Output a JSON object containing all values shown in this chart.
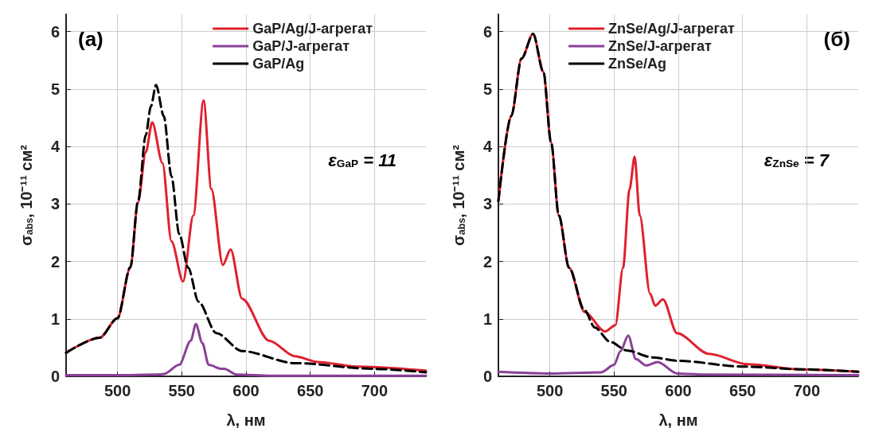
{
  "chart_data": [
    {
      "type": "line",
      "xlabel": "λ, нм",
      "ylabel": "σ$_{abs}$, 10⁻¹¹ см²",
      "xlim": [
        460,
        740
      ],
      "ylim": [
        0,
        6.3
      ],
      "xticks": [
        500,
        550,
        600,
        650,
        700
      ],
      "yticks": [
        0,
        1,
        2,
        3,
        4,
        5,
        6
      ],
      "grid": true,
      "legend": "top right",
      "marker": "none",
      "annotations": [
        "(a)",
        "ε$_{GaP}$ = 11"
      ],
      "series": [
        {
          "name": "GaP/Ag/J-агрегат",
          "color": "#e0202e",
          "line_style": "solid",
          "x": [
            460,
            486,
            500,
            510,
            516,
            522,
            527,
            535,
            542,
            551,
            559,
            567,
            573,
            582,
            588,
            597,
            618,
            638,
            656,
            686,
            740
          ],
          "values": [
            0.41,
            0.67,
            1.01,
            1.89,
            3.03,
            3.9,
            4.42,
            3.71,
            2.35,
            1.65,
            2.8,
            4.8,
            3.26,
            1.94,
            2.21,
            1.35,
            0.62,
            0.35,
            0.25,
            0.17,
            0.1
          ]
        },
        {
          "name": "GaP/J-агрегат",
          "color": "#8b3f98",
          "line_style": "solid",
          "x": [
            460,
            500,
            530,
            536,
            548,
            557,
            561,
            566,
            571,
            581,
            583,
            593,
            620,
            740
          ],
          "values": [
            0.02,
            0.02,
            0.03,
            0.04,
            0.2,
            0.62,
            0.91,
            0.58,
            0.2,
            0.13,
            0.13,
            0.03,
            0.01,
            0.01
          ]
        },
        {
          "name": "GaP/Ag",
          "color": "#000000",
          "line_style": "dashed",
          "x": [
            460,
            486,
            500,
            510,
            516,
            522,
            526,
            530,
            536,
            542,
            548,
            555,
            563,
            577,
            597,
            638,
            700,
            740
          ],
          "values": [
            0.41,
            0.67,
            1.01,
            1.9,
            3.05,
            4.2,
            4.7,
            5.07,
            4.53,
            3.48,
            2.48,
            1.89,
            1.3,
            0.75,
            0.44,
            0.23,
            0.13,
            0.07
          ]
        }
      ]
    },
    {
      "type": "line",
      "xlabel": "λ, нм",
      "ylabel": "σ$_{abs}$, 10⁻¹¹ см²",
      "xlim": [
        460,
        740
      ],
      "ylim": [
        0,
        6.3
      ],
      "xticks": [
        500,
        550,
        600,
        650,
        700
      ],
      "yticks": [
        0,
        1,
        2,
        3,
        4,
        5,
        6
      ],
      "grid": true,
      "legend": "top",
      "marker": "none",
      "annotations": [
        "(б)",
        "ε$_{ZnSe}$ = 7"
      ],
      "series": [
        {
          "name": "ZnSe/Ag/J-агрегат",
          "color": "#e0202e",
          "line_style": "solid",
          "x": [
            460,
            470,
            478,
            487,
            495,
            501,
            507,
            515,
            527,
            543,
            551,
            557,
            562,
            566,
            570,
            578,
            582,
            588,
            599,
            624,
            654,
            695,
            740
          ],
          "values": [
            3.05,
            4.53,
            5.53,
            5.96,
            5.3,
            4.07,
            2.8,
            1.89,
            1.12,
            0.78,
            0.89,
            1.89,
            3.25,
            3.82,
            2.8,
            1.44,
            1.23,
            1.34,
            0.75,
            0.39,
            0.21,
            0.12,
            0.08
          ]
        },
        {
          "name": "ZnSe/J-агрегат",
          "color": "#8b3f98",
          "line_style": "solid",
          "x": [
            460,
            500,
            540,
            550,
            555,
            561,
            567,
            575,
            584,
            599,
            620,
            740
          ],
          "values": [
            0.08,
            0.05,
            0.07,
            0.2,
            0.44,
            0.71,
            0.3,
            0.19,
            0.25,
            0.05,
            0.03,
            0.02
          ]
        },
        {
          "name": "ZnSe/Ag",
          "color": "#000000",
          "line_style": "dashed",
          "x": [
            460,
            470,
            478,
            487,
            495,
            501,
            507,
            515,
            527,
            535,
            547,
            560,
            580,
            600,
            650,
            700,
            740
          ],
          "values": [
            3.05,
            4.53,
            5.53,
            5.96,
            5.3,
            4.07,
            2.8,
            1.89,
            1.15,
            0.85,
            0.6,
            0.45,
            0.33,
            0.27,
            0.17,
            0.12,
            0.08
          ]
        }
      ]
    }
  ]
}
